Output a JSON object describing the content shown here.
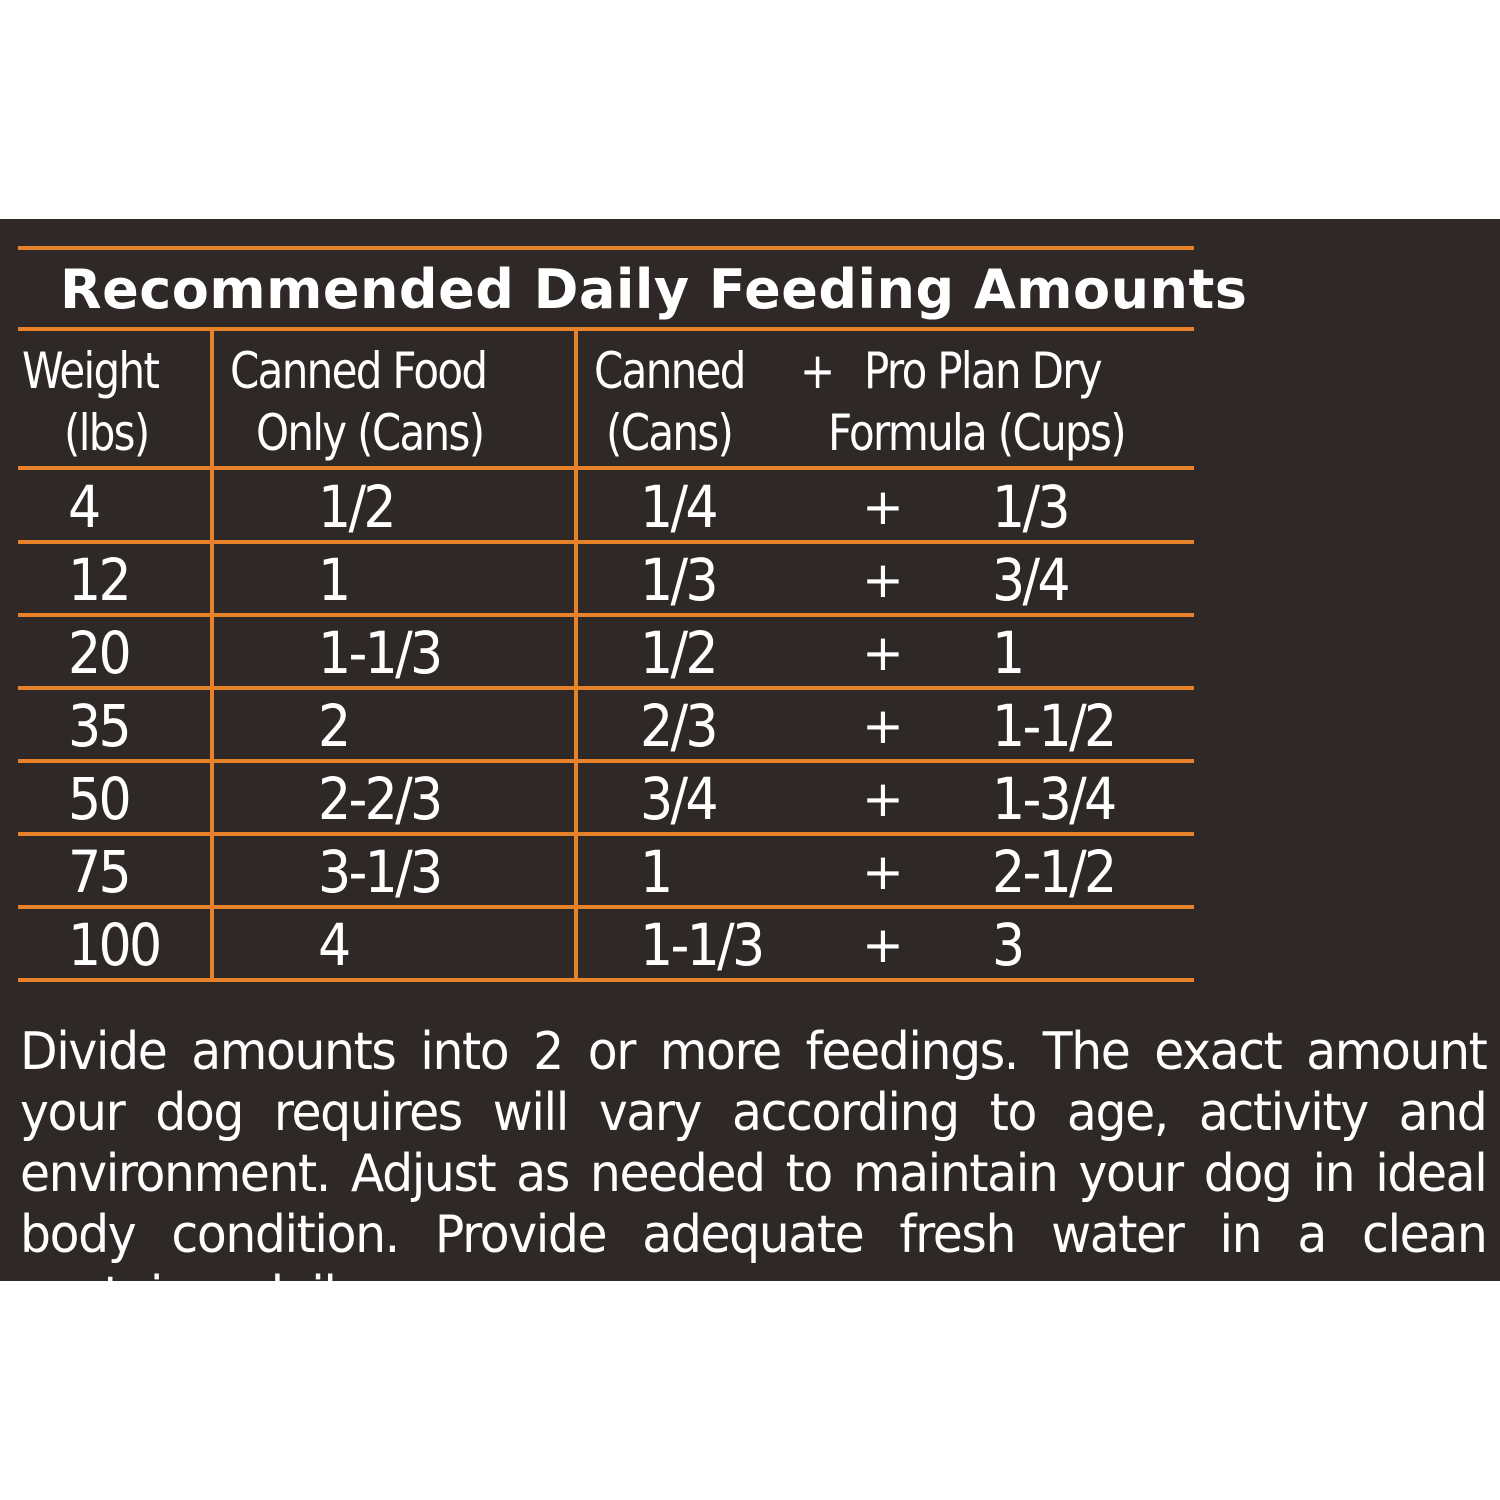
{
  "title": "Recommended Daily Feeding Amounts",
  "headers": {
    "weight": [
      "Weight",
      "(lbs)"
    ],
    "canned_only": [
      "Canned Food",
      "Only (Cans)"
    ],
    "canned": [
      "Canned",
      "(Cans)"
    ],
    "plus": "+",
    "dry": [
      "Pro Plan Dry",
      "Formula (Cups)"
    ]
  },
  "rows": [
    {
      "weight": "4",
      "canned_only": "1/2",
      "canned": "1/4",
      "plus": "+",
      "dry": "1/3"
    },
    {
      "weight": "12",
      "canned_only": "1",
      "canned": "1/3",
      "plus": "+",
      "dry": "3/4"
    },
    {
      "weight": "20",
      "canned_only": "1-1/3",
      "canned": "1/2",
      "plus": "+",
      "dry": "1"
    },
    {
      "weight": "35",
      "canned_only": "2",
      "canned": "2/3",
      "plus": "+",
      "dry": "1-1/2"
    },
    {
      "weight": "50",
      "canned_only": "2-2/3",
      "canned": "3/4",
      "plus": "+",
      "dry": "1-3/4"
    },
    {
      "weight": "75",
      "canned_only": "3-1/3",
      "canned": "1",
      "plus": "+",
      "dry": "2-1/2"
    },
    {
      "weight": "100",
      "canned_only": "4",
      "canned": "1-1/3",
      "plus": "+",
      "dry": "3"
    }
  ],
  "note": "Divide amounts into 2 or more feedings. The exact amount your dog requires will vary according to age, activity and environment. Adjust as needed to maintain your dog in ideal body condition. Provide adequate fresh water in a clean container daily.",
  "colors": {
    "background": "#2e2926",
    "rule": "#e8822a",
    "text": "#ffffff"
  }
}
